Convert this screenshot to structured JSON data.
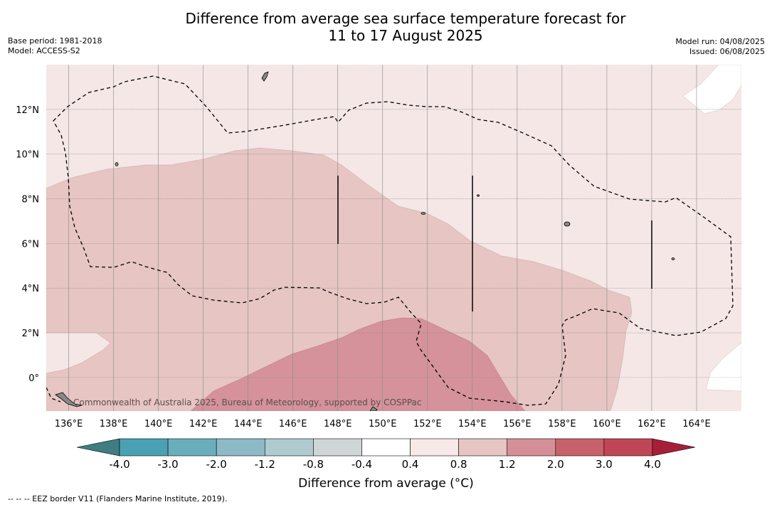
{
  "title_line1": "Difference from average sea surface temperature forecast for",
  "title_line2": "11 to 17 August 2025",
  "meta_left": [
    "Base period: 1981-2018",
    "Model: ACCESS-S2"
  ],
  "meta_right": [
    "Model run: 04/08/2025",
    "Issued: 06/08/2025"
  ],
  "credit": "Commonwealth of Australia 2025, Bureau of Meteorology, supported by COSPPac",
  "footnote": "-- -- -- EEZ border V11 (Flanders Marine Institute, 2019).",
  "map": {
    "lon_range": [
      135,
      166
    ],
    "lat_range": [
      -1.5,
      14
    ],
    "lon_ticks": [
      "136°E",
      "138°E",
      "140°E",
      "142°E",
      "144°E",
      "146°E",
      "148°E",
      "150°E",
      "152°E",
      "154°E",
      "156°E",
      "158°E",
      "160°E",
      "162°E",
      "164°E"
    ],
    "lat_ticks": [
      "0°",
      "2°N",
      "4°N",
      "6°N",
      "8°N",
      "10°N",
      "12°N"
    ],
    "colors": {
      "class_0_4_0_8": "#f4e7e6",
      "class_0_8_1_2": "#e6c5c2",
      "class_1_2_2_0": "#d5929a"
    },
    "dominant_anomaly": "0.4 to 0.8 °C",
    "warmest_anomaly": "1.2 to 2.0 °C"
  },
  "colorbar": {
    "label": "Difference from average (°C)",
    "ticks": [
      "-4.0",
      "-3.0",
      "-2.0",
      "-1.2",
      "-0.8",
      "-0.4",
      "0.4",
      "0.8",
      "1.2",
      "2.0",
      "3.0",
      "4.0"
    ],
    "colors": [
      "#3f7d82",
      "#49a1b3",
      "#6aaebb",
      "#8cbac6",
      "#afcbcf",
      "#d0d6d6",
      "#ffffff",
      "#f6e9e8",
      "#e6c5c2",
      "#d58f96",
      "#c9616c",
      "#bf4656",
      "#a81e38"
    ]
  }
}
